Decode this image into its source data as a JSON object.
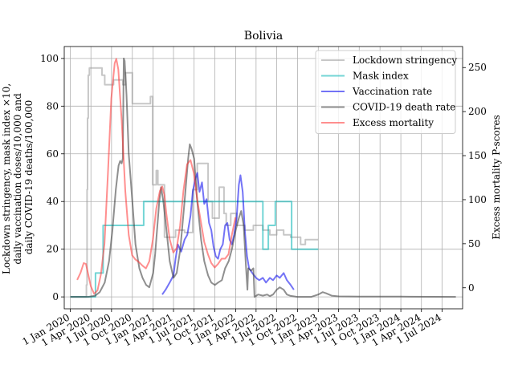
{
  "chart_data": {
    "type": "line",
    "title": "Bolivia",
    "ylabel_left": [
      "Lockdown stringency, mask index ×10,",
      "daily vaccination doses/10,000 and",
      "daily COVID-19 deaths/100,000"
    ],
    "ylabel_right": "Excess mortality P-scores",
    "xlabel": "",
    "x_range": [
      "2019-12-05",
      "2024-09-30"
    ],
    "ylim_left": [
      -5,
      105
    ],
    "ylim_right": [
      -23.9,
      273.9
    ],
    "x_ticks": [
      {
        "date": "2020-01-01",
        "label": "1 Jan 2020"
      },
      {
        "date": "2020-04-01",
        "label": "1 Apr 2020"
      },
      {
        "date": "2020-07-01",
        "label": "1 Jul 2020"
      },
      {
        "date": "2020-10-01",
        "label": "1 Oct 2020"
      },
      {
        "date": "2021-01-01",
        "label": "1 Jan 2021"
      },
      {
        "date": "2021-04-01",
        "label": "1 Apr 2021"
      },
      {
        "date": "2021-07-01",
        "label": "1 Jul 2021"
      },
      {
        "date": "2021-10-01",
        "label": "1 Oct 2021"
      },
      {
        "date": "2022-01-01",
        "label": "1 Jan 2022"
      },
      {
        "date": "2022-04-01",
        "label": "1 Apr 2022"
      },
      {
        "date": "2022-07-01",
        "label": "1 Jul 2022"
      },
      {
        "date": "2022-10-01",
        "label": "1 Oct 2022"
      },
      {
        "date": "2023-01-01",
        "label": "1 Jan 2023"
      },
      {
        "date": "2023-04-01",
        "label": "1 Apr 2023"
      },
      {
        "date": "2023-07-01",
        "label": "1 Jul 2023"
      },
      {
        "date": "2023-10-01",
        "label": "1 Oct 2023"
      },
      {
        "date": "2024-01-01",
        "label": "1 Jan 2024"
      },
      {
        "date": "2024-04-01",
        "label": "1 Apr 2024"
      },
      {
        "date": "2024-07-01",
        "label": "1 Jul 2024"
      }
    ],
    "y_ticks_left": [
      0,
      20,
      40,
      60,
      80,
      100
    ],
    "y_ticks_right": [
      0,
      50,
      100,
      150,
      200,
      250
    ],
    "grid": true,
    "legend_position": "top-right",
    "series": [
      {
        "name": "Lockdown stringency",
        "axis": "left",
        "color": "#999999",
        "step": true,
        "points": [
          [
            "2020-01-01",
            0
          ],
          [
            "2020-03-10",
            0
          ],
          [
            "2020-03-12",
            5
          ],
          [
            "2020-03-15",
            45
          ],
          [
            "2020-03-17",
            75
          ],
          [
            "2020-03-20",
            93
          ],
          [
            "2020-03-25",
            96
          ],
          [
            "2020-05-20",
            93
          ],
          [
            "2020-06-01",
            89
          ],
          [
            "2020-07-10",
            91
          ],
          [
            "2020-08-20",
            89
          ],
          [
            "2020-09-01",
            94
          ],
          [
            "2020-10-01",
            81
          ],
          [
            "2020-12-20",
            84
          ],
          [
            "2020-12-30",
            47
          ],
          [
            "2021-01-15",
            53
          ],
          [
            "2021-01-22",
            47
          ],
          [
            "2021-02-20",
            25
          ],
          [
            "2021-04-10",
            28
          ],
          [
            "2021-05-20",
            27
          ],
          [
            "2021-06-25",
            45
          ],
          [
            "2021-07-15",
            56
          ],
          [
            "2021-09-01",
            40
          ],
          [
            "2021-09-20",
            33
          ],
          [
            "2021-10-20",
            46
          ],
          [
            "2021-11-10",
            35
          ],
          [
            "2021-11-20",
            30
          ],
          [
            "2021-12-10",
            35
          ],
          [
            "2022-01-05",
            30
          ],
          [
            "2022-02-10",
            28
          ],
          [
            "2022-03-20",
            30
          ],
          [
            "2022-05-01",
            28
          ],
          [
            "2022-06-01",
            26
          ],
          [
            "2022-07-01",
            28
          ],
          [
            "2022-08-01",
            26
          ],
          [
            "2022-09-01",
            25
          ],
          [
            "2022-10-15",
            22
          ],
          [
            "2022-11-05",
            24
          ],
          [
            "2023-01-01",
            24
          ]
        ]
      },
      {
        "name": "Mask index",
        "axis": "left",
        "color": "#00b3b3",
        "step": true,
        "points": [
          [
            "2020-01-01",
            0
          ],
          [
            "2020-04-20",
            0
          ],
          [
            "2020-04-21",
            10
          ],
          [
            "2020-05-25",
            30
          ],
          [
            "2020-11-20",
            40
          ],
          [
            "2022-05-01",
            20
          ],
          [
            "2022-05-25",
            30
          ],
          [
            "2022-06-25",
            40
          ],
          [
            "2022-09-05",
            20
          ],
          [
            "2023-01-01",
            20
          ]
        ]
      },
      {
        "name": "Vaccination rate",
        "axis": "left",
        "color": "#0000ee",
        "step": false,
        "points": [
          [
            "2021-02-10",
            1
          ],
          [
            "2021-02-25",
            3
          ],
          [
            "2021-03-15",
            6
          ],
          [
            "2021-04-01",
            9
          ],
          [
            "2021-04-10",
            16
          ],
          [
            "2021-04-20",
            22
          ],
          [
            "2021-05-05",
            19
          ],
          [
            "2021-05-20",
            24
          ],
          [
            "2021-06-01",
            26
          ],
          [
            "2021-06-15",
            34
          ],
          [
            "2021-06-25",
            44
          ],
          [
            "2021-07-05",
            49
          ],
          [
            "2021-07-15",
            52
          ],
          [
            "2021-07-25",
            44
          ],
          [
            "2021-08-05",
            48
          ],
          [
            "2021-08-15",
            39
          ],
          [
            "2021-08-25",
            41
          ],
          [
            "2021-09-05",
            31
          ],
          [
            "2021-09-15",
            28
          ],
          [
            "2021-09-25",
            21
          ],
          [
            "2021-10-05",
            17
          ],
          [
            "2021-10-15",
            16
          ],
          [
            "2021-10-25",
            20
          ],
          [
            "2021-11-05",
            22
          ],
          [
            "2021-11-15",
            30
          ],
          [
            "2021-11-25",
            31
          ],
          [
            "2021-12-05",
            24
          ],
          [
            "2021-12-15",
            22
          ],
          [
            "2021-12-25",
            26
          ],
          [
            "2022-01-05",
            33
          ],
          [
            "2022-01-15",
            47
          ],
          [
            "2022-01-22",
            51
          ],
          [
            "2022-02-01",
            44
          ],
          [
            "2022-02-10",
            28
          ],
          [
            "2022-02-20",
            17
          ],
          [
            "2022-03-01",
            12
          ],
          [
            "2022-03-15",
            10
          ],
          [
            "2022-04-01",
            8
          ],
          [
            "2022-04-15",
            7
          ],
          [
            "2022-05-01",
            8
          ],
          [
            "2022-05-15",
            6
          ],
          [
            "2022-06-01",
            8
          ],
          [
            "2022-06-15",
            7
          ],
          [
            "2022-07-01",
            9
          ],
          [
            "2022-07-15",
            8
          ],
          [
            "2022-08-01",
            10
          ],
          [
            "2022-08-15",
            7
          ],
          [
            "2022-09-01",
            5
          ],
          [
            "2022-09-15",
            3
          ]
        ]
      },
      {
        "name": "COVID-19 death rate",
        "axis": "left",
        "color": "#333333",
        "step": false,
        "points": [
          [
            "2020-01-01",
            0
          ],
          [
            "2020-03-20",
            0
          ],
          [
            "2020-04-20",
            0.5
          ],
          [
            "2020-05-10",
            2
          ],
          [
            "2020-06-01",
            6
          ],
          [
            "2020-06-20",
            15
          ],
          [
            "2020-07-05",
            28
          ],
          [
            "2020-07-20",
            45
          ],
          [
            "2020-08-01",
            55
          ],
          [
            "2020-08-08",
            57
          ],
          [
            "2020-08-15",
            56
          ],
          [
            "2020-08-20",
            58
          ],
          [
            "2020-08-24",
            100
          ],
          [
            "2020-08-28",
            99
          ],
          [
            "2020-09-05",
            85
          ],
          [
            "2020-09-15",
            60
          ],
          [
            "2020-10-01",
            40
          ],
          [
            "2020-10-15",
            22
          ],
          [
            "2020-11-01",
            12
          ],
          [
            "2020-11-15",
            8
          ],
          [
            "2020-12-01",
            5
          ],
          [
            "2020-12-15",
            4
          ],
          [
            "2021-01-01",
            10
          ],
          [
            "2021-01-10",
            18
          ],
          [
            "2021-01-20",
            30
          ],
          [
            "2021-01-28",
            40
          ],
          [
            "2021-02-05",
            46
          ],
          [
            "2021-02-15",
            40
          ],
          [
            "2021-03-01",
            28
          ],
          [
            "2021-03-15",
            15
          ],
          [
            "2021-04-01",
            8
          ],
          [
            "2021-04-15",
            10
          ],
          [
            "2021-05-01",
            20
          ],
          [
            "2021-05-20",
            40
          ],
          [
            "2021-06-05",
            58
          ],
          [
            "2021-06-12",
            64
          ],
          [
            "2021-06-20",
            62
          ],
          [
            "2021-07-01",
            58
          ],
          [
            "2021-07-15",
            40
          ],
          [
            "2021-08-01",
            24
          ],
          [
            "2021-08-15",
            15
          ],
          [
            "2021-09-01",
            9
          ],
          [
            "2021-09-15",
            6
          ],
          [
            "2021-10-01",
            5
          ],
          [
            "2021-10-15",
            6
          ],
          [
            "2021-11-01",
            7
          ],
          [
            "2021-11-15",
            12
          ],
          [
            "2021-12-01",
            15
          ],
          [
            "2021-12-15",
            20
          ],
          [
            "2022-01-01",
            28
          ],
          [
            "2022-01-15",
            33
          ],
          [
            "2022-01-25",
            36
          ],
          [
            "2022-02-05",
            30
          ],
          [
            "2022-02-15",
            13
          ],
          [
            "2022-02-22",
            3
          ],
          [
            "2022-02-25",
            12
          ],
          [
            "2022-03-10",
            11
          ],
          [
            "2022-03-20",
            12
          ],
          [
            "2022-03-25",
            0
          ],
          [
            "2022-04-10",
            1
          ],
          [
            "2022-05-01",
            0.5
          ],
          [
            "2022-05-20",
            1
          ],
          [
            "2022-06-01",
            0.3
          ],
          [
            "2022-06-15",
            1
          ],
          [
            "2022-07-01",
            3
          ],
          [
            "2022-07-15",
            4
          ],
          [
            "2022-08-01",
            3
          ],
          [
            "2022-08-15",
            1
          ],
          [
            "2022-09-01",
            0.4
          ],
          [
            "2022-10-01",
            0
          ],
          [
            "2022-12-01",
            0
          ],
          [
            "2023-01-01",
            1
          ],
          [
            "2023-01-20",
            2
          ],
          [
            "2023-02-05",
            1.5
          ],
          [
            "2023-03-01",
            0.5
          ],
          [
            "2023-04-01",
            0.2
          ],
          [
            "2023-07-01",
            0.1
          ],
          [
            "2024-01-01",
            0.1
          ],
          [
            "2024-08-31",
            0
          ]
        ]
      },
      {
        "name": "Excess mortality",
        "axis": "right",
        "color": "#ff3333",
        "step": false,
        "points": [
          [
            "2020-01-31",
            9
          ],
          [
            "2020-02-15",
            17
          ],
          [
            "2020-02-29",
            28
          ],
          [
            "2020-03-10",
            27
          ],
          [
            "2020-03-20",
            15
          ],
          [
            "2020-03-31",
            2
          ],
          [
            "2020-04-15",
            -7
          ],
          [
            "2020-04-30",
            -3
          ],
          [
            "2020-05-15",
            15
          ],
          [
            "2020-05-31",
            50
          ],
          [
            "2020-06-15",
            130
          ],
          [
            "2020-06-30",
            215
          ],
          [
            "2020-07-15",
            255
          ],
          [
            "2020-07-22",
            260
          ],
          [
            "2020-07-31",
            248
          ],
          [
            "2020-08-15",
            190
          ],
          [
            "2020-08-31",
            110
          ],
          [
            "2020-09-15",
            60
          ],
          [
            "2020-09-30",
            37
          ],
          [
            "2020-10-15",
            32
          ],
          [
            "2020-10-31",
            29
          ],
          [
            "2020-11-15",
            25
          ],
          [
            "2020-11-30",
            22
          ],
          [
            "2020-12-15",
            30
          ],
          [
            "2020-12-31",
            55
          ],
          [
            "2021-01-15",
            90
          ],
          [
            "2021-01-31",
            110
          ],
          [
            "2021-02-10",
            115
          ],
          [
            "2021-02-20",
            105
          ],
          [
            "2021-02-28",
            85
          ],
          [
            "2021-03-15",
            55
          ],
          [
            "2021-03-31",
            40
          ],
          [
            "2021-04-15",
            45
          ],
          [
            "2021-04-30",
            70
          ],
          [
            "2021-05-15",
            110
          ],
          [
            "2021-05-31",
            140
          ],
          [
            "2021-06-15",
            145
          ],
          [
            "2021-06-30",
            130
          ],
          [
            "2021-07-15",
            100
          ],
          [
            "2021-07-31",
            75
          ],
          [
            "2021-08-15",
            52
          ],
          [
            "2021-08-31",
            38
          ],
          [
            "2021-09-15",
            28
          ],
          [
            "2021-09-30",
            23
          ],
          [
            "2021-10-15",
            27
          ],
          [
            "2021-10-31",
            33
          ],
          [
            "2021-11-15",
            33
          ],
          [
            "2021-11-30",
            38
          ],
          [
            "2021-12-15",
            60
          ],
          [
            "2021-12-31",
            80
          ]
        ]
      }
    ]
  }
}
